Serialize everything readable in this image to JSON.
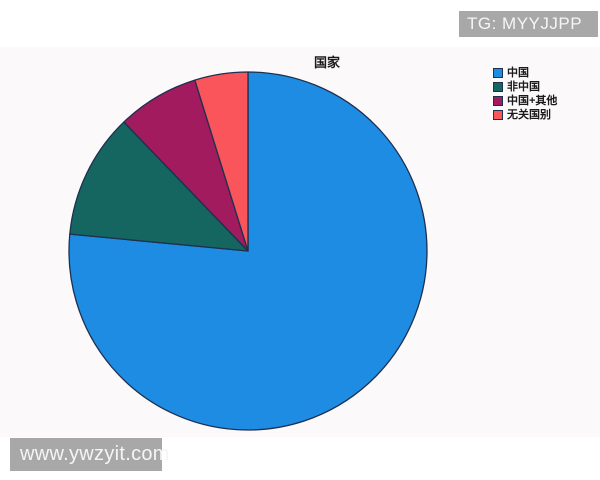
{
  "watermark_top": {
    "text": "TG: MYYJJPP"
  },
  "watermark_bottom": {
    "text": "www.ywzyit.com"
  },
  "chart_data": {
    "type": "pie",
    "title": "国家",
    "categories": [
      "中国",
      "非中国",
      "中国+其他",
      "无关国别"
    ],
    "values": [
      76.5,
      11.3,
      7.4,
      4.8
    ],
    "unit": "percent",
    "colors": [
      "#1f8ce4",
      "#156661",
      "#a11b5e",
      "#f9555b"
    ],
    "edge_color": "#1e3050",
    "start_angle": 90,
    "direction": "clockwise",
    "legend_position": "upper right",
    "legend_entries": [
      "中国",
      "非中国",
      "中国+其他",
      "无关国别"
    ]
  }
}
